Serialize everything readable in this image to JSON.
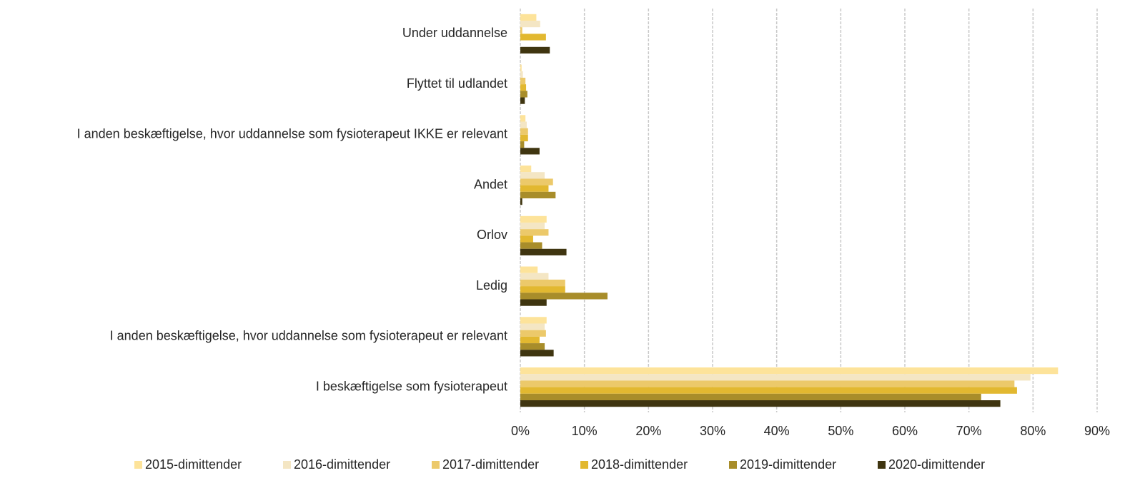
{
  "chart_data": {
    "type": "barh",
    "categories": [
      "Under uddannelse",
      "Flyttet til udlandet",
      "I anden beskæftigelse, hvor uddannelse som fysioterapeut IKKE er relevant",
      "Andet",
      "Orlov",
      "Ledig",
      "I anden beskæftigelse, hvor uddannelse som fysioterapeut er relevant",
      "I beskæftigelse som fysioterapeut"
    ],
    "series": [
      {
        "name": "2015-dimittender",
        "color": "#fde39a",
        "values": [
          2.5,
          0.2,
          0.8,
          1.7,
          4.1,
          2.7,
          4.1,
          83.9
        ]
      },
      {
        "name": "2016-dimittender",
        "color": "#f4e6c4",
        "values": [
          3.1,
          0.4,
          1.0,
          3.8,
          3.8,
          4.4,
          3.8,
          79.6
        ]
      },
      {
        "name": "2017-dimittender",
        "color": "#ecc96a",
        "values": [
          0.3,
          0.8,
          1.2,
          5.1,
          4.4,
          7.0,
          4.0,
          77.1
        ]
      },
      {
        "name": "2018-dimittender",
        "color": "#e2b830",
        "values": [
          4.0,
          0.9,
          1.2,
          4.4,
          2.0,
          7.0,
          3.0,
          77.5
        ]
      },
      {
        "name": "2019-dimittender",
        "color": "#a88d2a",
        "values": [
          0,
          1.1,
          0.6,
          5.5,
          3.4,
          13.6,
          3.8,
          71.9
        ]
      },
      {
        "name": "2020-dimittender",
        "color": "#3f3510",
        "values": [
          4.6,
          0.7,
          3.0,
          0.3,
          7.2,
          4.1,
          5.2,
          74.9
        ]
      }
    ],
    "xlim": [
      0,
      90
    ],
    "xticks": [
      {
        "value": 0,
        "label": "0%"
      },
      {
        "value": 10,
        "label": "10%"
      },
      {
        "value": 20,
        "label": "20%"
      },
      {
        "value": 30,
        "label": "30%"
      },
      {
        "value": 40,
        "label": "40%"
      },
      {
        "value": 50,
        "label": "50%"
      },
      {
        "value": 60,
        "label": "60%"
      },
      {
        "value": 70,
        "label": "70%"
      },
      {
        "value": 80,
        "label": "80%"
      },
      {
        "value": 90,
        "label": "90%"
      }
    ],
    "grid": true,
    "legend": "bottom"
  }
}
